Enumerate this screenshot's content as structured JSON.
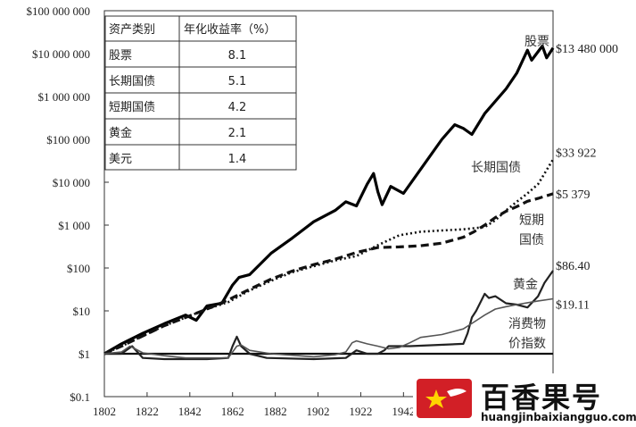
{
  "chart_data": {
    "type": "line",
    "title": "",
    "xlabel": "",
    "ylabel": "",
    "yscale": "log",
    "xlim": [
      1802,
      2012
    ],
    "ylim": [
      0.1,
      100000000
    ],
    "x_ticks": [
      "1802",
      "1822",
      "1842",
      "1862",
      "1882",
      "1902",
      "1922",
      "1942"
    ],
    "y_ticks": [
      "$100 000 000",
      "$10 000 000",
      "$1 000 000",
      "$100 000",
      "$10 000",
      "$1 000",
      "$100",
      "$10",
      "$1",
      "$0.1"
    ],
    "grid": false,
    "series": [
      {
        "name": "股票",
        "end_label": "$13 480 000",
        "x": [
          1802,
          1810,
          1820,
          1830,
          1840,
          1845,
          1850,
          1857,
          1862,
          1865,
          1870,
          1880,
          1890,
          1900,
          1910,
          1915,
          1920,
          1925,
          1928,
          1930,
          1932,
          1936,
          1942,
          1950,
          1960,
          1966,
          1970,
          1974,
          1980,
          1990,
          1995,
          2000,
          2002,
          2007,
          2009,
          2012
        ],
        "y": [
          1,
          1.7,
          3,
          5,
          8,
          6,
          13,
          15,
          40,
          60,
          70,
          220,
          500,
          1200,
          2200,
          3500,
          2800,
          9000,
          16000,
          6000,
          3000,
          8000,
          5500,
          20000,
          100000,
          220000,
          180000,
          130000,
          400000,
          1500000,
          3500000,
          12000000,
          7000000,
          15000000,
          8000000,
          13480000
        ]
      },
      {
        "name": "长期国债",
        "end_label": "$33 922",
        "x": [
          1802,
          1810,
          1820,
          1830,
          1840,
          1850,
          1860,
          1870,
          1880,
          1890,
          1900,
          1910,
          1920,
          1930,
          1940,
          1950,
          1960,
          1970,
          1980,
          1985,
          1990,
          1995,
          2000,
          2005,
          2012
        ],
        "y": [
          1,
          1.5,
          2.6,
          4.5,
          7,
          11,
          16,
          30,
          50,
          80,
          110,
          150,
          190,
          340,
          580,
          700,
          750,
          800,
          900,
          1300,
          2200,
          3500,
          5500,
          9000,
          33922
        ]
      },
      {
        "name": "短期国债",
        "end_label": "$5 379",
        "x": [
          1802,
          1810,
          1820,
          1830,
          1840,
          1850,
          1860,
          1870,
          1880,
          1890,
          1900,
          1910,
          1920,
          1930,
          1940,
          1950,
          1960,
          1970,
          1975,
          1980,
          1985,
          1990,
          1995,
          2000,
          2005,
          2012
        ],
        "y": [
          1,
          1.5,
          2.6,
          4.5,
          7,
          11,
          18,
          32,
          55,
          85,
          120,
          160,
          230,
          300,
          310,
          330,
          380,
          520,
          700,
          1000,
          1500,
          2100,
          2700,
          3600,
          4200,
          5379
        ]
      },
      {
        "name": "黄金",
        "end_label": "$86.40",
        "x": [
          1802,
          1810,
          1815,
          1820,
          1830,
          1840,
          1850,
          1860,
          1862,
          1864,
          1866,
          1870,
          1878,
          1900,
          1915,
          1920,
          1925,
          1930,
          1933,
          1935,
          1945,
          1970,
          1972,
          1974,
          1976,
          1980,
          1982,
          1985,
          1990,
          1995,
          2000,
          2005,
          2008,
          2012
        ],
        "y": [
          1,
          1,
          1.5,
          0.8,
          0.75,
          0.75,
          0.75,
          0.8,
          1.5,
          2.5,
          1.5,
          1,
          0.8,
          0.75,
          0.8,
          1.2,
          1,
          1,
          1.2,
          1.5,
          1.5,
          1.7,
          3,
          7,
          10,
          25,
          20,
          22,
          15,
          14,
          12,
          22,
          45,
          86.4
        ]
      },
      {
        "name": "消费物价指数",
        "end_label": "$19.11",
        "x": [
          1802,
          1810,
          1814,
          1820,
          1830,
          1840,
          1850,
          1860,
          1864,
          1866,
          1870,
          1880,
          1900,
          1910,
          1915,
          1918,
          1920,
          1925,
          1930,
          1935,
          1940,
          1945,
          1950,
          1960,
          1970,
          1975,
          1980,
          1985,
          1990,
          1995,
          2000,
          2005,
          2012
        ],
        "y": [
          1,
          1.1,
          1.5,
          1.05,
          0.9,
          0.8,
          0.8,
          0.8,
          1.5,
          1.6,
          1.2,
          1,
          0.85,
          0.95,
          1.1,
          1.8,
          2,
          1.7,
          1.5,
          1.3,
          1.4,
          1.8,
          2.4,
          2.8,
          3.8,
          5.5,
          8,
          11,
          12.5,
          14,
          15.5,
          17,
          19.11
        ]
      }
    ],
    "series_labels": {
      "stocks": "股票",
      "lt_bonds": [
        "长期国债"
      ],
      "st_bills": [
        "短期",
        "国债"
      ],
      "gold": "黄金",
      "cpi": [
        "消费物",
        "价指数"
      ]
    },
    "table": {
      "headers": [
        "资产类别",
        "年化收益率（%）"
      ],
      "rows": [
        [
          "股票",
          "8.1"
        ],
        [
          "长期国债",
          "5.1"
        ],
        [
          "短期国债",
          "4.2"
        ],
        [
          "黄金",
          "2.1"
        ],
        [
          "美元",
          "1.4"
        ]
      ]
    }
  },
  "watermark": {
    "name": "百香果号",
    "url": "huangjinbaixiangguo.com",
    "logo_color": "#d21f26"
  }
}
